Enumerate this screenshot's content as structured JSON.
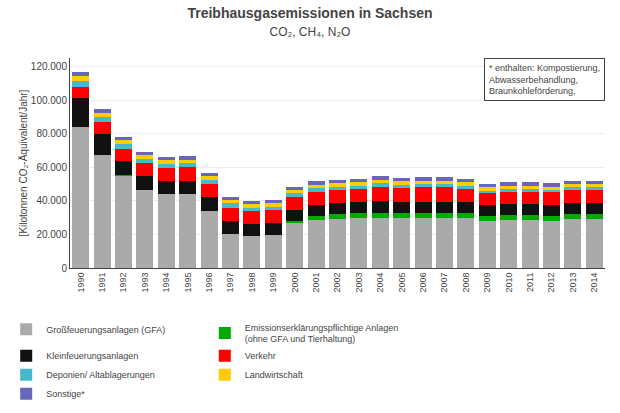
{
  "chart_data": {
    "type": "bar",
    "stacked": true,
    "title": "Treibhausgasemissionen in Sachsen",
    "subtitle": "CO₂, CH₄, N₂O",
    "ylabel": "[Kilotonnen CO₂-Äquivalent/Jahr]",
    "categories": [
      "1990",
      "1991",
      "1992",
      "1993",
      "1994",
      "1995",
      "1996",
      "1997",
      "1998",
      "1999",
      "2000",
      "2001",
      "2002",
      "2003",
      "2004",
      "2005",
      "2006",
      "2007",
      "2008",
      "2009",
      "2010",
      "2011",
      "2012",
      "2013",
      "2014"
    ],
    "series": [
      {
        "name": "Großfeuerungsanlagen (GFA)",
        "color": "#aaaaaa",
        "values": [
          84000,
          67000,
          55000,
          46500,
          44000,
          44000,
          34000,
          20000,
          19000,
          19500,
          27000,
          28500,
          29000,
          29500,
          30000,
          29500,
          29500,
          29500,
          29500,
          28000,
          28500,
          28500,
          28000,
          29000,
          29000
        ]
      },
      {
        "name": "Emissionserklärungspflichtige Anlagen\n(ohne GFA und Tierhaltung)",
        "color": "#00aa00",
        "values": [
          0,
          0,
          500,
          0,
          0,
          0,
          0,
          0,
          0,
          0,
          1000,
          2500,
          3000,
          3000,
          3000,
          3000,
          3000,
          3000,
          3000,
          3000,
          3000,
          3000,
          3000,
          3000,
          3000
        ]
      },
      {
        "name": "Kleinfeuerungsanlagen",
        "color": "#111111",
        "values": [
          17000,
          13000,
          8000,
          8000,
          7500,
          8000,
          8000,
          8000,
          7000,
          7000,
          6500,
          6500,
          6500,
          6500,
          7000,
          7000,
          7000,
          7000,
          7000,
          6500,
          6500,
          6500,
          6500,
          6500,
          6500
        ]
      },
      {
        "name": "Verkehr",
        "color": "#ff0000",
        "values": [
          7000,
          7000,
          7500,
          8000,
          8000,
          8000,
          8000,
          8000,
          8000,
          8000,
          8000,
          8000,
          8000,
          8000,
          8500,
          8000,
          8500,
          8500,
          7500,
          7000,
          7500,
          7500,
          7500,
          8000,
          8000
        ]
      },
      {
        "name": "Deponien/ Altablagerungen",
        "color": "#44bbcc",
        "values": [
          3500,
          3000,
          3000,
          2500,
          2500,
          2500,
          2500,
          2500,
          2000,
          2000,
          2000,
          2000,
          2000,
          2000,
          2000,
          2000,
          2000,
          2000,
          2000,
          1500,
          1500,
          1500,
          1500,
          1500,
          1500
        ]
      },
      {
        "name": "Landwirtschaft",
        "color": "#ffcc00",
        "values": [
          2500,
          2000,
          2000,
          2000,
          2000,
          2000,
          2000,
          2000,
          2000,
          2000,
          2000,
          2000,
          2000,
          2000,
          2000,
          2000,
          2000,
          2000,
          2000,
          2000,
          2000,
          2000,
          2000,
          2000,
          2000
        ]
      },
      {
        "name": "Sonstige*",
        "color": "#6666bb",
        "values": [
          2500,
          2500,
          2000,
          2000,
          2000,
          2000,
          2000,
          2000,
          2000,
          2000,
          2000,
          2000,
          2000,
          2000,
          2000,
          2000,
          2000,
          2000,
          2000,
          2000,
          2000,
          2000,
          2000,
          2000,
          2000
        ]
      }
    ],
    "ylim": [
      0,
      125000
    ],
    "yticks": [
      0,
      {
        "value": 20000,
        "label": "20.000"
      },
      {
        "value": 40000,
        "label": "40.000"
      },
      {
        "value": 60000,
        "label": "60.000"
      },
      {
        "value": 80000,
        "label": "80.000"
      },
      {
        "value": 100000,
        "label": "100.000"
      },
      {
        "value": 120000,
        "label": "120.000"
      }
    ],
    "grid": true,
    "legend": "bottom",
    "annotations": [
      "* enthalten: Kompostierung,\nAbwasserbehandlung,\nBraunkohleförderung,"
    ]
  }
}
